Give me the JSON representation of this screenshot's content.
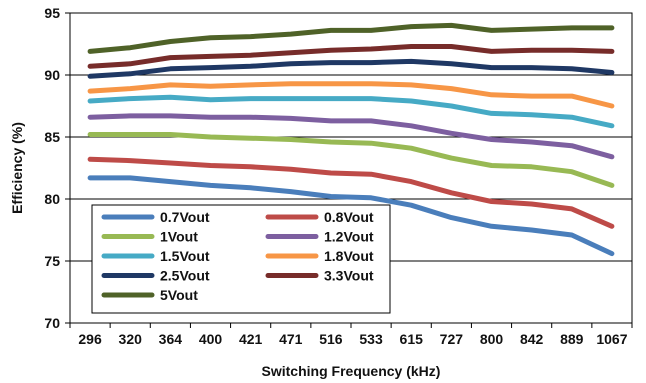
{
  "chart_data": {
    "type": "line",
    "xlabel": "Switching Frequency (kHz)",
    "ylabel": "Efficiency (%)",
    "ylim": [
      70,
      95
    ],
    "yticks": [
      70,
      75,
      80,
      85,
      90,
      95
    ],
    "grid": "horizontal",
    "legend_position": "bottom-left inside",
    "categories": [
      "296",
      "320",
      "364",
      "400",
      "421",
      "471",
      "516",
      "533",
      "615",
      "727",
      "800",
      "842",
      "889",
      "1067"
    ],
    "series": [
      {
        "name": "0.7Vout",
        "color": "#4a7ebb",
        "values": [
          81.7,
          81.7,
          81.4,
          81.1,
          80.9,
          80.6,
          80.2,
          80.1,
          79.5,
          78.5,
          77.8,
          77.5,
          77.1,
          75.6
        ]
      },
      {
        "name": "0.8Vout",
        "color": "#be4b48",
        "values": [
          83.2,
          83.1,
          82.9,
          82.7,
          82.6,
          82.4,
          82.1,
          82.0,
          81.4,
          80.5,
          79.8,
          79.6,
          79.2,
          77.8
        ]
      },
      {
        "name": "1Vout",
        "color": "#98b954",
        "values": [
          85.2,
          85.2,
          85.2,
          85.0,
          84.9,
          84.8,
          84.6,
          84.5,
          84.1,
          83.3,
          82.7,
          82.6,
          82.2,
          81.1
        ]
      },
      {
        "name": "1.2Vout",
        "color": "#7d5fa0",
        "values": [
          86.6,
          86.7,
          86.7,
          86.6,
          86.6,
          86.5,
          86.3,
          86.3,
          85.9,
          85.3,
          84.8,
          84.6,
          84.3,
          83.4
        ]
      },
      {
        "name": "1.5Vout",
        "color": "#46aac5",
        "values": [
          87.9,
          88.1,
          88.2,
          88.0,
          88.1,
          88.1,
          88.1,
          88.1,
          87.9,
          87.5,
          86.9,
          86.8,
          86.6,
          85.9
        ]
      },
      {
        "name": "1.8Vout",
        "color": "#f79646",
        "values": [
          88.7,
          88.9,
          89.2,
          89.1,
          89.2,
          89.3,
          89.3,
          89.3,
          89.2,
          88.9,
          88.4,
          88.3,
          88.3,
          87.5
        ]
      },
      {
        "name": "2.5Vout",
        "color": "#1f3864",
        "values": [
          89.9,
          90.1,
          90.5,
          90.6,
          90.7,
          90.9,
          91.0,
          91.0,
          91.1,
          90.9,
          90.6,
          90.6,
          90.5,
          90.2
        ]
      },
      {
        "name": "3.3Vout",
        "color": "#772c2a",
        "values": [
          90.7,
          90.9,
          91.4,
          91.5,
          91.6,
          91.8,
          92.0,
          92.1,
          92.3,
          92.3,
          91.9,
          92.0,
          92.0,
          91.9
        ]
      },
      {
        "name": "5Vout",
        "color": "#4f6228",
        "values": [
          91.9,
          92.2,
          92.7,
          93.0,
          93.1,
          93.3,
          93.6,
          93.6,
          93.9,
          94.0,
          93.6,
          93.7,
          93.8,
          93.8
        ]
      }
    ]
  }
}
